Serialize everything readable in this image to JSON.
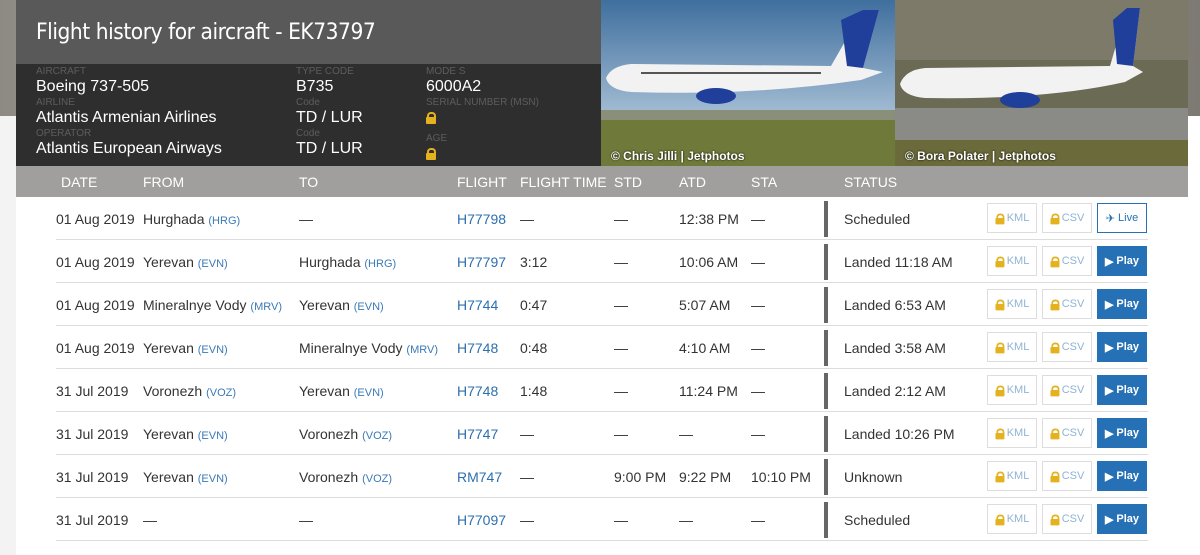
{
  "title": "Flight history for aircraft - EK73797",
  "details": {
    "aircraft_label": "AIRCRAFT",
    "aircraft": "Boeing 737-505",
    "airline_label": "AIRLINE",
    "airline": "Atlantis Armenian Airlines",
    "operator_label": "OPERATOR",
    "operator": "Atlantis European Airways",
    "type_code_label": "TYPE CODE",
    "type_code": "B735",
    "airline_code_label": "Code",
    "airline_code": "TD / LUR",
    "operator_code_label": "Code",
    "operator_code": "TD / LUR",
    "mode_s_label": "MODE S",
    "mode_s": "6000A2",
    "msn_label": "SERIAL NUMBER (MSN)",
    "age_label": "AGE"
  },
  "photos": [
    {
      "credit": "© Chris Jilli | Jetphotos"
    },
    {
      "credit": "© Bora Polater | Jetphotos"
    }
  ],
  "columns": [
    "DATE",
    "FROM",
    "TO",
    "FLIGHT",
    "FLIGHT TIME",
    "STD",
    "ATD",
    "STA",
    "STATUS"
  ],
  "buttons": {
    "kml": "KML",
    "csv": "CSV",
    "play": "Play",
    "live": "Live"
  },
  "colors": {
    "accent": "#2671b6",
    "lock": "#e5b21f",
    "header": "#a19e9e"
  },
  "rows": [
    {
      "date": "01 Aug 2019",
      "from": "Hurghada",
      "from_code": "(HRG)",
      "to": "—",
      "to_code": "",
      "flight": "H77798",
      "time": "—",
      "std": "—",
      "atd": "12:38 PM",
      "sta": "—",
      "status": "Scheduled",
      "action": "live"
    },
    {
      "date": "01 Aug 2019",
      "from": "Yerevan",
      "from_code": "(EVN)",
      "to": "Hurghada",
      "to_code": "(HRG)",
      "flight": "H77797",
      "time": "3:12",
      "std": "—",
      "atd": "10:06 AM",
      "sta": "—",
      "status": "Landed 11:18 AM",
      "action": "play"
    },
    {
      "date": "01 Aug 2019",
      "from": "Mineralnye Vody",
      "from_code": "(MRV)",
      "to": "Yerevan",
      "to_code": "(EVN)",
      "flight": "H7744",
      "time": "0:47",
      "std": "—",
      "atd": "5:07 AM",
      "sta": "—",
      "status": "Landed 6:53 AM",
      "action": "play"
    },
    {
      "date": "01 Aug 2019",
      "from": "Yerevan",
      "from_code": "(EVN)",
      "to": "Mineralnye Vody",
      "to_code": "(MRV)",
      "flight": "H7748",
      "time": "0:48",
      "std": "—",
      "atd": "4:10 AM",
      "sta": "—",
      "status": "Landed 3:58 AM",
      "action": "play"
    },
    {
      "date": "31 Jul 2019",
      "from": "Voronezh",
      "from_code": "(VOZ)",
      "to": "Yerevan",
      "to_code": "(EVN)",
      "flight": "H7748",
      "time": "1:48",
      "std": "—",
      "atd": "11:24 PM",
      "sta": "—",
      "status": "Landed 2:12 AM",
      "action": "play"
    },
    {
      "date": "31 Jul 2019",
      "from": "Yerevan",
      "from_code": "(EVN)",
      "to": "Voronezh",
      "to_code": "(VOZ)",
      "flight": "H7747",
      "time": "—",
      "std": "—",
      "atd": "—",
      "sta": "—",
      "status": "Landed 10:26 PM",
      "action": "play"
    },
    {
      "date": "31 Jul 2019",
      "from": "Yerevan",
      "from_code": "(EVN)",
      "to": "Voronezh",
      "to_code": "(VOZ)",
      "flight": "RM747",
      "time": "—",
      "std": "9:00 PM",
      "atd": "9:22 PM",
      "sta": "10:10 PM",
      "status": "Unknown",
      "action": "play"
    },
    {
      "date": "31 Jul 2019",
      "from": "—",
      "from_code": "",
      "to": "—",
      "to_code": "",
      "flight": "H77097",
      "time": "—",
      "std": "—",
      "atd": "—",
      "sta": "—",
      "status": "Scheduled",
      "action": "play"
    }
  ]
}
